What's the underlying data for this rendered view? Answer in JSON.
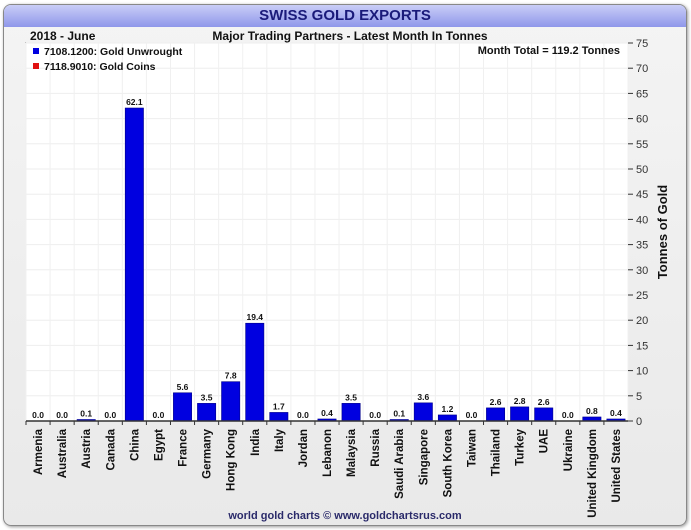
{
  "chart_data": {
    "type": "bar",
    "title": "SWISS GOLD EXPORTS",
    "period": "2018 - June",
    "subtitle": "Major Trading Partners - Latest Month In Tonnes",
    "annotation": "Month Total = 119.2 Tonnes",
    "ylabel": "Tonnes of Gold",
    "xlabel": "",
    "ylim": [
      0,
      75
    ],
    "yticks": [
      0,
      5,
      10,
      15,
      20,
      25,
      30,
      35,
      40,
      45,
      50,
      55,
      60,
      65,
      70,
      75
    ],
    "grid": true,
    "legend_position": "top-left",
    "categories": [
      "Armenia",
      "Australia",
      "Austria",
      "Canada",
      "China",
      "Egypt",
      "France",
      "Germany",
      "Hong Kong",
      "India",
      "Italy",
      "Jordan",
      "Lebanon",
      "Malaysia",
      "Russia",
      "Saudi Arabia",
      "Singapore",
      "South Korea",
      "Taiwan",
      "Thailand",
      "Turkey",
      "UAE",
      "Ukraine",
      "United Kingdom",
      "United States"
    ],
    "series": [
      {
        "name": "7108.1200: Gold Unwrought",
        "color": "#0000e0",
        "values": [
          0.0,
          0.0,
          0.1,
          0.0,
          62.1,
          0.0,
          5.6,
          3.5,
          7.8,
          19.4,
          1.7,
          0.0,
          0.4,
          3.5,
          0.0,
          0.1,
          3.6,
          1.2,
          0.0,
          2.6,
          2.8,
          2.6,
          0.0,
          0.8,
          0.4
        ]
      },
      {
        "name": "7118.9010: Gold Coins",
        "color": "#e01010",
        "values": [
          0,
          0,
          0,
          0,
          0,
          0,
          0,
          0,
          0,
          0,
          0,
          0,
          0,
          0,
          0,
          0,
          0,
          0,
          0,
          0,
          0,
          0,
          0,
          0,
          0
        ]
      }
    ],
    "footer": "world gold charts © www.goldchartsrus.com"
  }
}
